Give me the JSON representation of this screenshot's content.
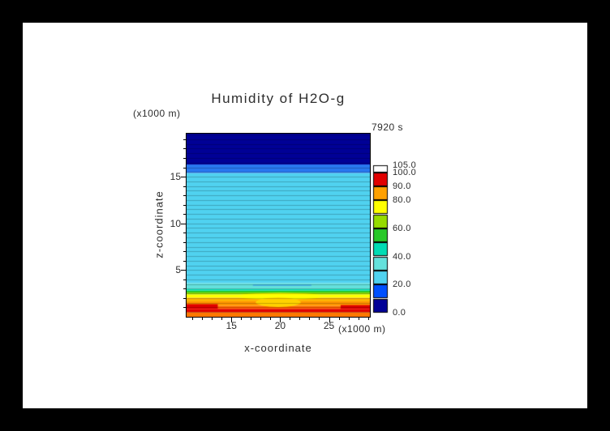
{
  "title": "Humidity of H2O-g",
  "time_label": "7920 s",
  "axis_labels": {
    "x": "x-coordinate",
    "y": "z-coordinate",
    "x_unit": "(x1000 m)",
    "y_unit": "(x1000 m)"
  },
  "chart_data": {
    "type": "heatmap",
    "title": "Humidity of H2O-g",
    "time": "7920 s",
    "xlabel": "x-coordinate (x1000 m)",
    "ylabel": "z-coordinate (x1000 m)",
    "x_range": [
      10.4,
      29.2
    ],
    "z_range": [
      0,
      19.6
    ],
    "x_ticks_major": [
      15,
      20,
      25
    ],
    "y_ticks_major": [
      5,
      10,
      15
    ],
    "minor_tick_step": 1,
    "grid": {
      "dz": 0.5,
      "color": "rgba(0,0,0,0.22)"
    },
    "colorbar": {
      "levels": [
        {
          "from": 0,
          "to": 10,
          "color": "#000096"
        },
        {
          "from": 10,
          "to": 20,
          "color": "#0050FF"
        },
        {
          "from": 20,
          "to": 30,
          "color": "#50D2F0"
        },
        {
          "from": 30,
          "to": 40,
          "color": "#64E1DC"
        },
        {
          "from": 40,
          "to": 50,
          "color": "#00DCB4"
        },
        {
          "from": 50,
          "to": 60,
          "color": "#28C828"
        },
        {
          "from": 60,
          "to": 70,
          "color": "#96DC00"
        },
        {
          "from": 70,
          "to": 80,
          "color": "#FFFF00"
        },
        {
          "from": 80,
          "to": 90,
          "color": "#FFA000"
        },
        {
          "from": 90,
          "to": 100,
          "color": "#E10000"
        },
        {
          "from": 100,
          "to": 105,
          "color": "#FFFFFF"
        }
      ],
      "ticks": [
        {
          "label": "105.0",
          "value": 105
        },
        {
          "label": "100.0",
          "value": 100
        },
        {
          "label": "90.0",
          "value": 90
        },
        {
          "label": "80.0",
          "value": 80
        },
        {
          "label": "60.0",
          "value": 60
        },
        {
          "label": "40.0",
          "value": 40
        },
        {
          "label": "20.0",
          "value": 20
        },
        {
          "label": "0.0",
          "value": 0
        }
      ]
    },
    "bands": [
      {
        "z0": 0.0,
        "z1": 0.5,
        "value": 87,
        "color": "#FF7800"
      },
      {
        "z0": 0.5,
        "z1": 0.85,
        "value": 95,
        "color": "#E10000"
      },
      {
        "z0": 0.85,
        "z1": 1.15,
        "value": 92,
        "color": "#FF6400"
      },
      {
        "z0": 1.15,
        "z1": 1.65,
        "value": 87,
        "color": "#FF9600"
      },
      {
        "z0": 1.65,
        "z1": 2.05,
        "value": 83,
        "color": "#FFB400"
      },
      {
        "z0": 2.05,
        "z1": 2.4,
        "value": 75,
        "color": "#FFFF00"
      },
      {
        "z0": 2.4,
        "z1": 2.6,
        "value": 65,
        "color": "#96DC00"
      },
      {
        "z0": 2.6,
        "z1": 2.8,
        "value": 55,
        "color": "#28C828"
      },
      {
        "z0": 2.8,
        "z1": 3.0,
        "value": 45,
        "color": "#00DCB4"
      },
      {
        "z0": 3.0,
        "z1": 3.6,
        "value": 35,
        "color": "#64E1DC"
      },
      {
        "z0": 3.6,
        "z1": 15.4,
        "value": 25,
        "color": "#50D2F0"
      },
      {
        "z0": 15.4,
        "z1": 16.3,
        "value": 15,
        "color": "#2878F0"
      },
      {
        "z0": 16.3,
        "z1": 19.6,
        "value": 5,
        "color": "#000096"
      }
    ],
    "features": [
      {
        "shape": "ellipse",
        "cx": 20.0,
        "cz": 2.2,
        "rx": 4.5,
        "rz": 0.35,
        "value": 75,
        "color": "#FFFF00"
      },
      {
        "shape": "ellipse",
        "cx": 19.8,
        "cz": 1.55,
        "rx": 2.3,
        "rz": 0.5,
        "value": 80,
        "color": "#FFD200"
      },
      {
        "shape": "rect",
        "x0": 10.4,
        "x1": 13.6,
        "z0": 0.85,
        "z1": 1.35,
        "value": 95,
        "color": "#E10000"
      },
      {
        "shape": "rect",
        "x0": 26.2,
        "x1": 29.2,
        "z0": 0.85,
        "z1": 1.25,
        "value": 95,
        "color": "#E10000"
      },
      {
        "shape": "rect",
        "x0": 17.2,
        "x1": 23.2,
        "z0": 3.3,
        "z1": 3.45,
        "value": 30,
        "color": "#46B4E6"
      }
    ]
  }
}
